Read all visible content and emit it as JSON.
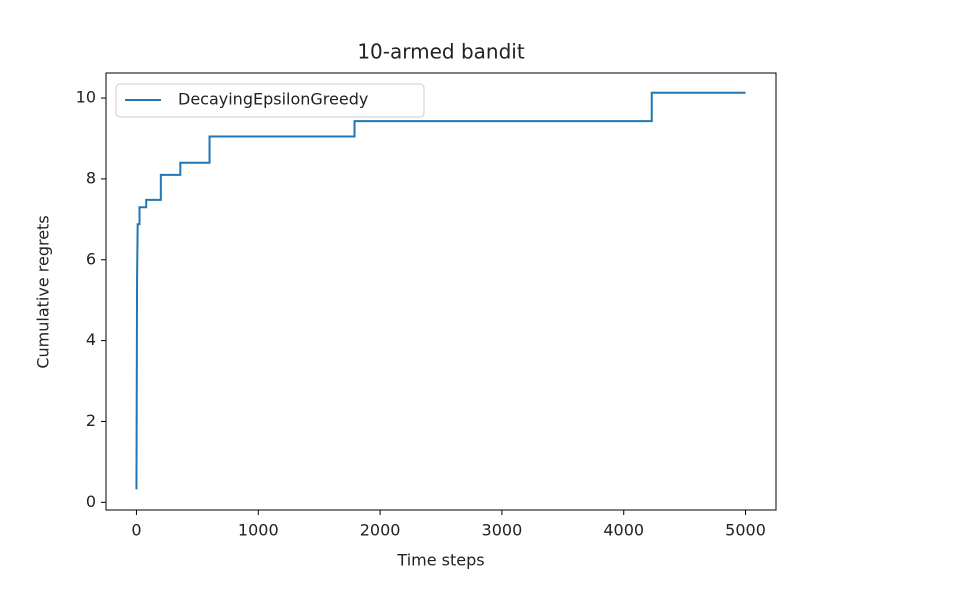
{
  "chart_data": {
    "type": "line",
    "title": "10-armed bandit",
    "x_label": "Time steps",
    "y_label": "Cumulative regrets",
    "x": [
      0,
      5,
      10,
      25,
      25,
      80,
      80,
      200,
      200,
      360,
      360,
      600,
      600,
      1790,
      1790,
      4230,
      4230,
      5000
    ],
    "series": [
      {
        "name": "DecayingEpsilonGreedy",
        "color": "#1f77b4",
        "values": [
          0.32,
          5.5,
          6.88,
          6.88,
          7.3,
          7.3,
          7.48,
          7.48,
          8.1,
          8.1,
          8.4,
          8.4,
          9.05,
          9.05,
          9.43,
          9.43,
          10.13,
          10.13
        ]
      }
    ],
    "xlim": [
      -250,
      5250
    ],
    "xticks": [
      0,
      1000,
      2000,
      3000,
      4000,
      5000
    ],
    "ylim": [
      -0.19,
      10.62
    ],
    "yticks": [
      0,
      2,
      4,
      6,
      8,
      10
    ],
    "grid": false,
    "legend": "upper left"
  }
}
